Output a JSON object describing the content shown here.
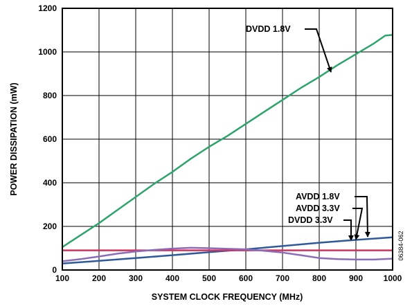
{
  "chart_data": {
    "type": "line",
    "title": "",
    "xlabel": "SYSTEM CLOCK FREQUENCY (MHz)",
    "ylabel": "POWER DISSIPATION (mW)",
    "xlim": [
      100,
      1000
    ],
    "ylim": [
      0,
      1200
    ],
    "xticks": [
      "100",
      "200",
      "300",
      "400",
      "500",
      "600",
      "700",
      "800",
      "900",
      "1000"
    ],
    "yticks": [
      "0",
      "200",
      "400",
      "600",
      "800",
      "1000",
      "1200"
    ],
    "grid": true,
    "legend": "callouts",
    "figure_id": "06384-062",
    "series": [
      {
        "name": "DVDD 1.8V",
        "color": "#2ea36b",
        "x": [
          100,
          150,
          200,
          250,
          300,
          350,
          400,
          450,
          500,
          550,
          600,
          650,
          700,
          750,
          800,
          850,
          900,
          950,
          980,
          1000
        ],
        "y": [
          105,
          160,
          215,
          275,
          335,
          395,
          450,
          510,
          565,
          615,
          670,
          725,
          780,
          835,
          885,
          940,
          990,
          1040,
          1075,
          1078
        ]
      },
      {
        "name": "AVDD 1.8V",
        "color": "#2e5a9c",
        "x": [
          100,
          200,
          300,
          400,
          500,
          600,
          700,
          800,
          900,
          1000
        ],
        "y": [
          30,
          42,
          55,
          68,
          82,
          95,
          110,
          125,
          138,
          150
        ]
      },
      {
        "name": "AVDD 3.3V",
        "color": "#d1335e",
        "x": [
          100,
          200,
          300,
          400,
          500,
          600,
          700,
          800,
          900,
          1000
        ],
        "y": [
          90,
          90,
          90,
          90,
          90,
          90,
          90,
          90,
          90,
          90
        ]
      },
      {
        "name": "DVDD 3.3V",
        "color": "#8a6cb8",
        "x": [
          100,
          150,
          200,
          250,
          300,
          350,
          400,
          450,
          500,
          550,
          600,
          650,
          700,
          750,
          800,
          850,
          900,
          950,
          1000
        ],
        "y": [
          40,
          50,
          62,
          75,
          85,
          92,
          98,
          102,
          100,
          97,
          95,
          88,
          80,
          68,
          55,
          50,
          48,
          48,
          52
        ]
      }
    ]
  }
}
